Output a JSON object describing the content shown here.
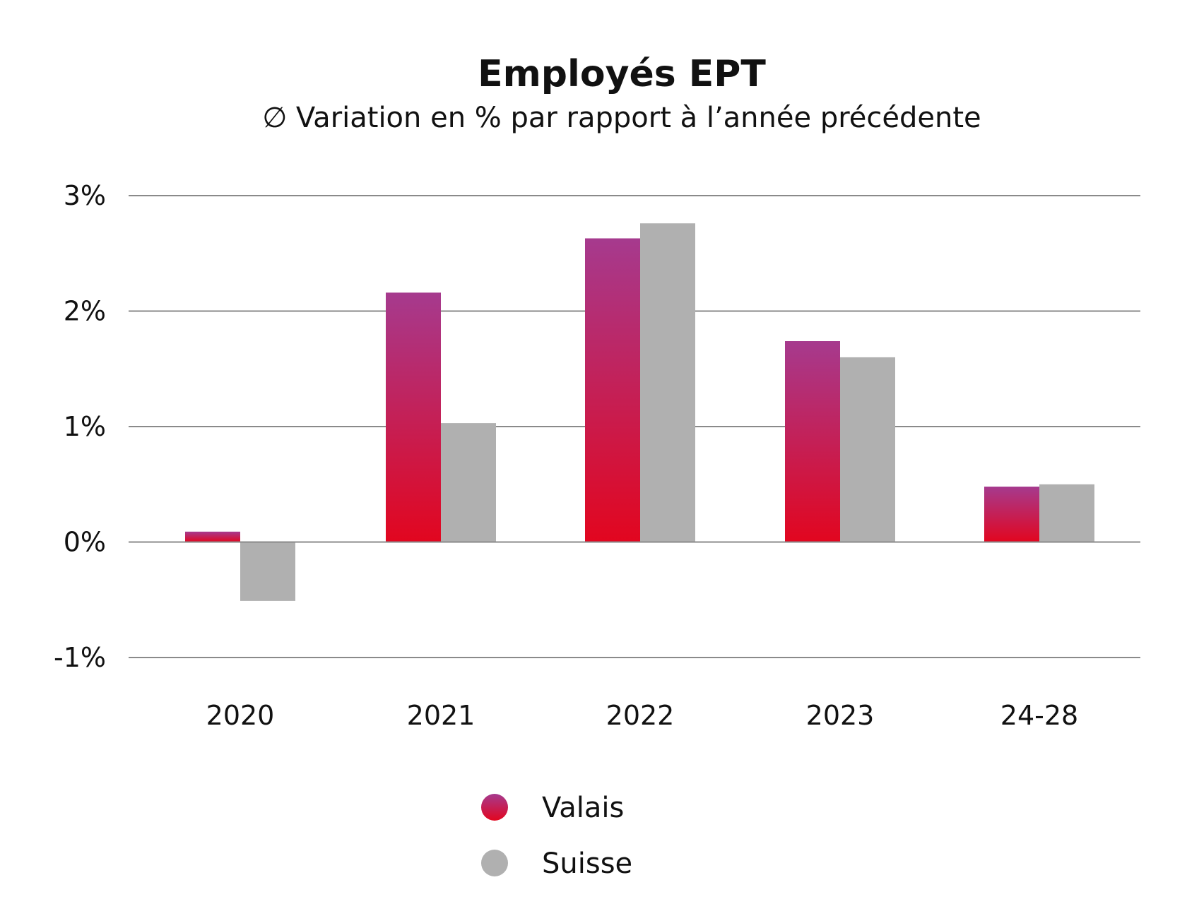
{
  "colors": {
    "valais_top": "#a63a8e",
    "valais_bottom": "#e2061f",
    "suisse": "#b0b0b0",
    "grid": "#8a8a8a",
    "text": "#111111"
  },
  "chart_data": {
    "type": "bar",
    "title": "Employés EPT",
    "subtitle": "∅ Variation en % par rapport à l’année précédente",
    "categories": [
      "2020",
      "2021",
      "2022",
      "2023",
      "24-28"
    ],
    "series": [
      {
        "name": "Valais",
        "values": [
          0.09,
          2.16,
          2.63,
          1.74,
          0.48
        ]
      },
      {
        "name": "Suisse",
        "values": [
          -0.51,
          1.03,
          2.76,
          1.6,
          0.5
        ]
      }
    ],
    "ylim": [
      -1,
      3
    ],
    "yticks": [
      3,
      2,
      1,
      0,
      -1
    ],
    "ytick_labels": [
      "3%",
      "2%",
      "1%",
      "0%",
      "-1%"
    ],
    "grid": true,
    "legend_position": "bottom-center"
  }
}
